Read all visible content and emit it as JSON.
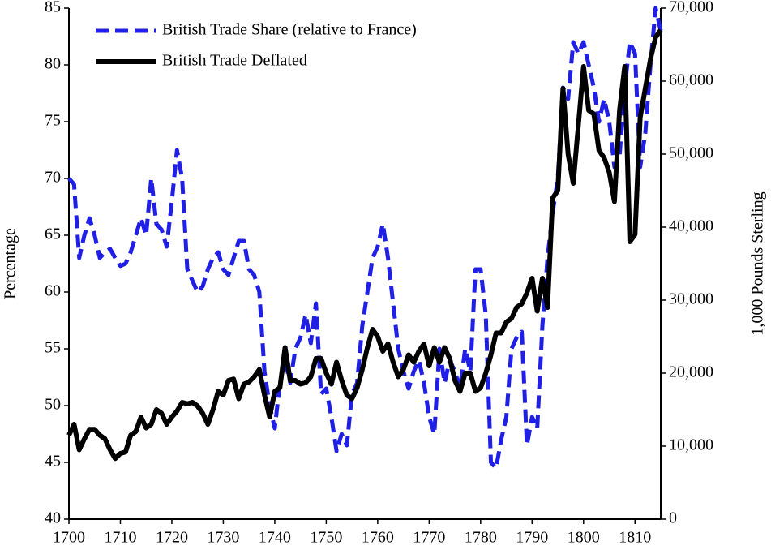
{
  "chart_data": {
    "type": "line",
    "y_label": "Percentage",
    "y2_label": "1,000 Pounds Sterling",
    "legend": "top-left",
    "x": [
      1700,
      1701,
      1702,
      1703,
      1704,
      1705,
      1706,
      1707,
      1708,
      1709,
      1710,
      1711,
      1712,
      1713,
      1714,
      1715,
      1716,
      1717,
      1718,
      1719,
      1720,
      1721,
      1722,
      1723,
      1724,
      1725,
      1726,
      1727,
      1728,
      1729,
      1730,
      1731,
      1732,
      1733,
      1734,
      1735,
      1736,
      1737,
      1738,
      1739,
      1740,
      1741,
      1742,
      1743,
      1744,
      1745,
      1746,
      1747,
      1748,
      1749,
      1750,
      1751,
      1752,
      1753,
      1754,
      1755,
      1756,
      1757,
      1758,
      1759,
      1760,
      1761,
      1762,
      1763,
      1764,
      1765,
      1766,
      1767,
      1768,
      1769,
      1770,
      1771,
      1772,
      1773,
      1774,
      1775,
      1776,
      1777,
      1778,
      1779,
      1780,
      1781,
      1782,
      1783,
      1784,
      1785,
      1786,
      1787,
      1788,
      1789,
      1790,
      1791,
      1792,
      1793,
      1794,
      1795,
      1796,
      1797,
      1798,
      1799,
      1800,
      1801,
      1802,
      1803,
      1804,
      1805,
      1806,
      1807,
      1808,
      1809,
      1810,
      1811,
      1812,
      1813,
      1814,
      1815
    ],
    "xlim": [
      1700,
      1815
    ],
    "xticks": [
      1700,
      1710,
      1720,
      1730,
      1740,
      1750,
      1760,
      1770,
      1780,
      1790,
      1800,
      1810
    ],
    "ylim": [
      40,
      85
    ],
    "yticks": [
      40,
      45,
      50,
      55,
      60,
      65,
      70,
      75,
      80,
      85
    ],
    "y2lim": [
      0,
      70000
    ],
    "y2ticks": [
      0,
      {
        "value": 10000,
        "label": "10,000"
      },
      {
        "value": 20000,
        "label": "20,000"
      },
      {
        "value": 30000,
        "label": "30,000"
      },
      {
        "value": 40000,
        "label": "40,000"
      },
      {
        "value": 50000,
        "label": "50,000"
      },
      {
        "value": 60000,
        "label": "60,000"
      },
      {
        "value": 70000,
        "label": "70,000"
      }
    ],
    "series": [
      {
        "name": "British Trade Share (relative to France)",
        "color": "#1f1fe6",
        "dashed": true,
        "values": [
          70,
          69.5,
          63,
          65,
          66.5,
          65,
          63,
          63.5,
          63.8,
          63,
          62.3,
          62.5,
          63.5,
          65,
          66.5,
          65,
          70,
          66,
          65.5,
          64,
          68,
          72.5,
          70,
          62,
          61,
          60,
          60.5,
          62,
          63,
          63.5,
          62,
          61.5,
          63,
          64.5,
          64.5,
          62,
          61.5,
          60,
          53,
          50,
          48,
          52,
          54,
          52,
          55,
          56,
          58,
          55.5,
          59,
          51,
          51.5,
          49,
          46,
          47.5,
          46.5,
          51,
          52,
          57,
          60,
          63,
          64,
          66,
          63,
          59,
          55,
          53,
          51.5,
          53,
          54,
          52,
          49,
          47.5,
          55,
          52,
          54,
          53,
          51.5,
          55,
          53,
          62,
          62,
          58,
          45,
          44.5,
          47,
          49,
          55,
          56,
          56.5,
          46.5,
          49,
          48,
          57,
          63,
          67,
          70,
          78,
          77,
          82,
          81,
          82,
          80,
          78,
          75,
          77,
          75,
          71,
          72,
          78,
          82,
          81,
          71,
          74,
          80,
          85,
          83
        ]
      },
      {
        "name": "British Trade Deflated",
        "color": "#000000",
        "dashed": false,
        "axis": "y2",
        "values": [
          11500,
          13000,
          9500,
          11000,
          12300,
          12300,
          11500,
          11000,
          9500,
          8300,
          9000,
          9200,
          11500,
          12000,
          14000,
          12500,
          13000,
          15000,
          14500,
          13000,
          14000,
          14800,
          16000,
          15800,
          16000,
          15500,
          14500,
          13000,
          15000,
          17500,
          17000,
          19000,
          19200,
          16500,
          18500,
          18800,
          19500,
          20500,
          17000,
          14000,
          17500,
          18000,
          23500,
          19000,
          19000,
          18500,
          18700,
          19500,
          22000,
          22000,
          20000,
          18500,
          21500,
          19000,
          17000,
          16500,
          18000,
          20500,
          23500,
          26000,
          25000,
          23000,
          24000,
          21500,
          19500,
          20500,
          22500,
          21500,
          23000,
          24000,
          21000,
          23500,
          21500,
          23500,
          22000,
          19000,
          17500,
          20000,
          20000,
          17500,
          18000,
          20000,
          22500,
          25500,
          25500,
          27000,
          27500,
          29000,
          29500,
          31000,
          33000,
          28500,
          33000,
          29000,
          44000,
          45000,
          59000,
          50000,
          46000,
          54000,
          62000,
          56000,
          55500,
          50500,
          49500,
          47500,
          43500,
          56000,
          62000,
          38000,
          39000,
          55000,
          59000,
          63000,
          66000,
          67000
        ]
      }
    ]
  }
}
